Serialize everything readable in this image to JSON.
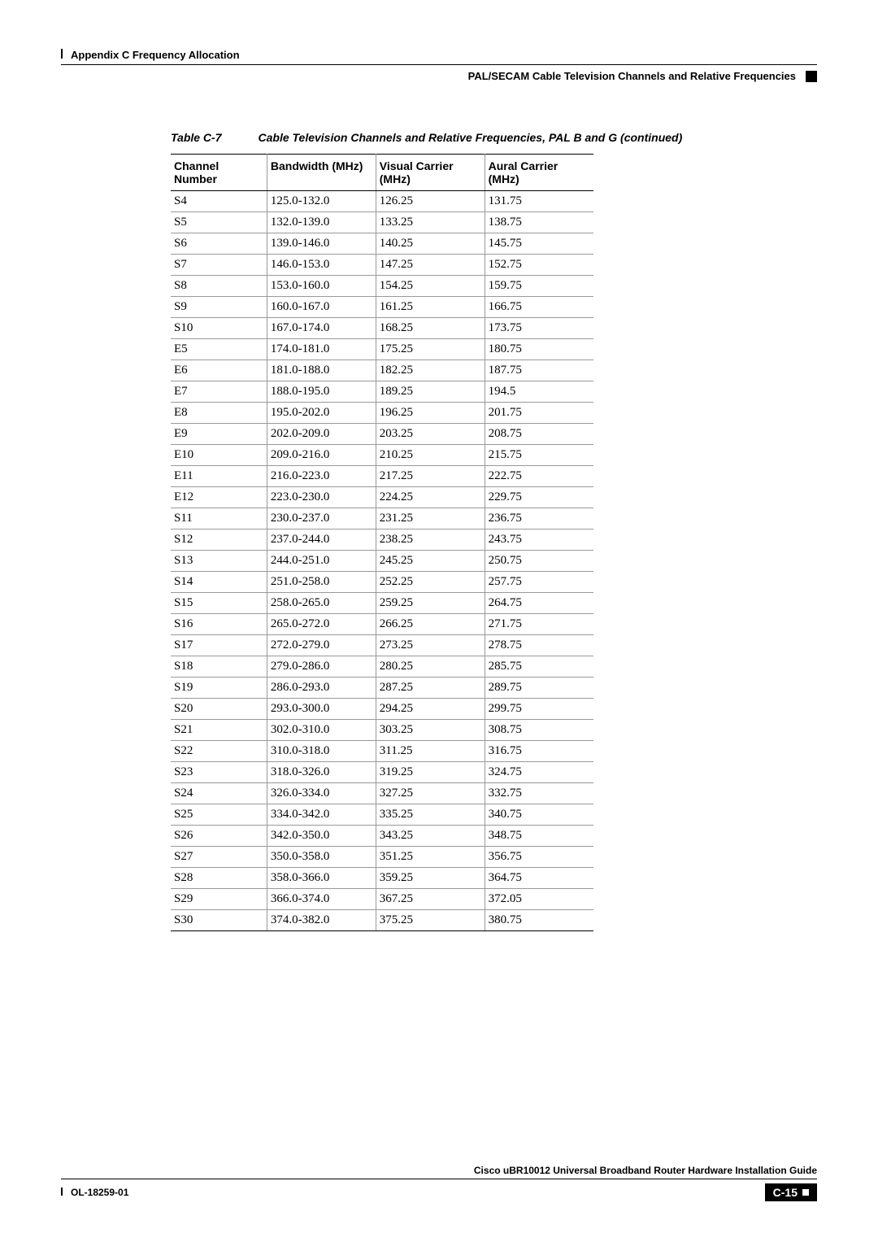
{
  "header": {
    "appendix": "Appendix C    Frequency Allocation",
    "sectionTitle": "PAL/SECAM Cable Television Channels and Relative Frequencies"
  },
  "table": {
    "captionLabel": "Table C-7",
    "captionText": "Cable Television Channels and Relative Frequencies, PAL B and G (continued)",
    "columns": {
      "channel": "Channel Number",
      "bandwidth": "Bandwidth (MHz)",
      "visual": "Visual Carrier (MHz)",
      "aural": "Aural Carrier (MHz)"
    },
    "rows": [
      {
        "channel": "S4",
        "bandwidth": "125.0-132.0",
        "visual": "126.25",
        "aural": "131.75"
      },
      {
        "channel": "S5",
        "bandwidth": "132.0-139.0",
        "visual": "133.25",
        "aural": "138.75"
      },
      {
        "channel": "S6",
        "bandwidth": "139.0-146.0",
        "visual": "140.25",
        "aural": "145.75"
      },
      {
        "channel": "S7",
        "bandwidth": "146.0-153.0",
        "visual": "147.25",
        "aural": "152.75"
      },
      {
        "channel": "S8",
        "bandwidth": "153.0-160.0",
        "visual": "154.25",
        "aural": "159.75"
      },
      {
        "channel": "S9",
        "bandwidth": "160.0-167.0",
        "visual": "161.25",
        "aural": "166.75"
      },
      {
        "channel": "S10",
        "bandwidth": "167.0-174.0",
        "visual": "168.25",
        "aural": "173.75"
      },
      {
        "channel": "E5",
        "bandwidth": "174.0-181.0",
        "visual": "175.25",
        "aural": "180.75"
      },
      {
        "channel": "E6",
        "bandwidth": "181.0-188.0",
        "visual": "182.25",
        "aural": "187.75"
      },
      {
        "channel": "E7",
        "bandwidth": "188.0-195.0",
        "visual": "189.25",
        "aural": "194.5"
      },
      {
        "channel": "E8",
        "bandwidth": "195.0-202.0",
        "visual": "196.25",
        "aural": "201.75"
      },
      {
        "channel": "E9",
        "bandwidth": "202.0-209.0",
        "visual": "203.25",
        "aural": "208.75"
      },
      {
        "channel": "E10",
        "bandwidth": "209.0-216.0",
        "visual": "210.25",
        "aural": "215.75"
      },
      {
        "channel": "E11",
        "bandwidth": "216.0-223.0",
        "visual": "217.25",
        "aural": "222.75"
      },
      {
        "channel": "E12",
        "bandwidth": "223.0-230.0",
        "visual": "224.25",
        "aural": "229.75"
      },
      {
        "channel": "S11",
        "bandwidth": "230.0-237.0",
        "visual": "231.25",
        "aural": "236.75"
      },
      {
        "channel": "S12",
        "bandwidth": "237.0-244.0",
        "visual": "238.25",
        "aural": "243.75"
      },
      {
        "channel": "S13",
        "bandwidth": "244.0-251.0",
        "visual": "245.25",
        "aural": "250.75"
      },
      {
        "channel": "S14",
        "bandwidth": "251.0-258.0",
        "visual": "252.25",
        "aural": "257.75"
      },
      {
        "channel": "S15",
        "bandwidth": "258.0-265.0",
        "visual": "259.25",
        "aural": "264.75"
      },
      {
        "channel": "S16",
        "bandwidth": "265.0-272.0",
        "visual": "266.25",
        "aural": "271.75"
      },
      {
        "channel": "S17",
        "bandwidth": "272.0-279.0",
        "visual": "273.25",
        "aural": "278.75"
      },
      {
        "channel": "S18",
        "bandwidth": "279.0-286.0",
        "visual": "280.25",
        "aural": "285.75"
      },
      {
        "channel": "S19",
        "bandwidth": "286.0-293.0",
        "visual": "287.25",
        "aural": "289.75"
      },
      {
        "channel": "S20",
        "bandwidth": "293.0-300.0",
        "visual": "294.25",
        "aural": "299.75"
      },
      {
        "channel": "S21",
        "bandwidth": "302.0-310.0",
        "visual": "303.25",
        "aural": "308.75"
      },
      {
        "channel": "S22",
        "bandwidth": "310.0-318.0",
        "visual": "311.25",
        "aural": "316.75"
      },
      {
        "channel": "S23",
        "bandwidth": "318.0-326.0",
        "visual": "319.25",
        "aural": "324.75"
      },
      {
        "channel": "S24",
        "bandwidth": "326.0-334.0",
        "visual": "327.25",
        "aural": "332.75"
      },
      {
        "channel": "S25",
        "bandwidth": "334.0-342.0",
        "visual": "335.25",
        "aural": "340.75"
      },
      {
        "channel": "S26",
        "bandwidth": "342.0-350.0",
        "visual": "343.25",
        "aural": "348.75"
      },
      {
        "channel": "S27",
        "bandwidth": "350.0-358.0",
        "visual": "351.25",
        "aural": "356.75"
      },
      {
        "channel": "S28",
        "bandwidth": "358.0-366.0",
        "visual": "359.25",
        "aural": "364.75"
      },
      {
        "channel": "S29",
        "bandwidth": "366.0-374.0",
        "visual": "367.25",
        "aural": "372.05"
      },
      {
        "channel": "S30",
        "bandwidth": "374.0-382.0",
        "visual": "375.25",
        "aural": "380.75"
      }
    ]
  },
  "footer": {
    "guideTitle": "Cisco uBR10012 Universal Broadband Router Hardware Installation Guide",
    "docNumber": "OL-18259-01",
    "pageNumber": "C-15"
  }
}
